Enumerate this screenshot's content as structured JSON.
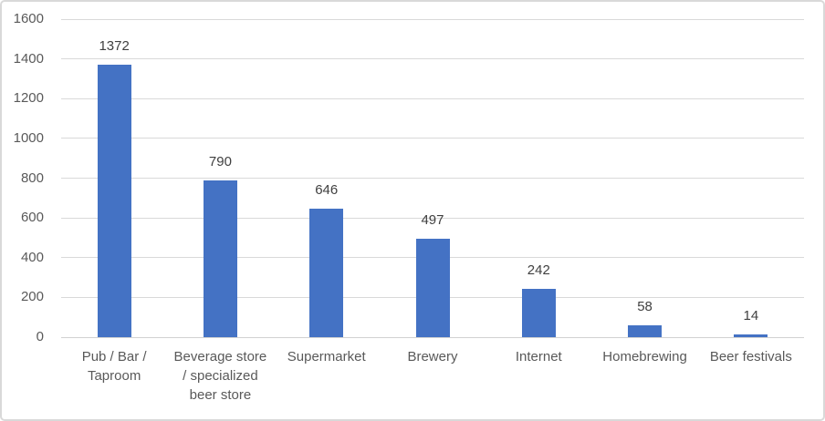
{
  "chart_data": {
    "type": "bar",
    "title": "",
    "xlabel": "",
    "ylabel": "",
    "categories": [
      "Pub / Bar / Taproom",
      "Beverage store / specialized beer store",
      "Supermarket",
      "Brewery",
      "Internet",
      "Homebrewing",
      "Beer festivals"
    ],
    "category_label_lines": [
      "Pub / Bar /\nTaproom",
      "Beverage store\n/ specialized\nbeer store",
      "Supermarket",
      "Brewery",
      "Internet",
      "Homebrewing",
      "Beer festivals"
    ],
    "values": [
      1372,
      790,
      646,
      497,
      242,
      58,
      14
    ],
    "data_labels": [
      "1372",
      "790",
      "646",
      "497",
      "242",
      "58",
      "14"
    ],
    "yticks": [
      0,
      200,
      400,
      600,
      800,
      1000,
      1200,
      1400,
      1600
    ],
    "ylim": [
      0,
      1600
    ],
    "grid": true,
    "legend": false,
    "colors": {
      "bar": "#4472C4",
      "gridline": "#D9D9D9",
      "axis_line": "#D2D2D2",
      "tick_label": "#595959",
      "category_label": "#595959",
      "data_label": "#404040",
      "background": "#FFFFFF",
      "frame_border": "#D9D9D9"
    }
  }
}
